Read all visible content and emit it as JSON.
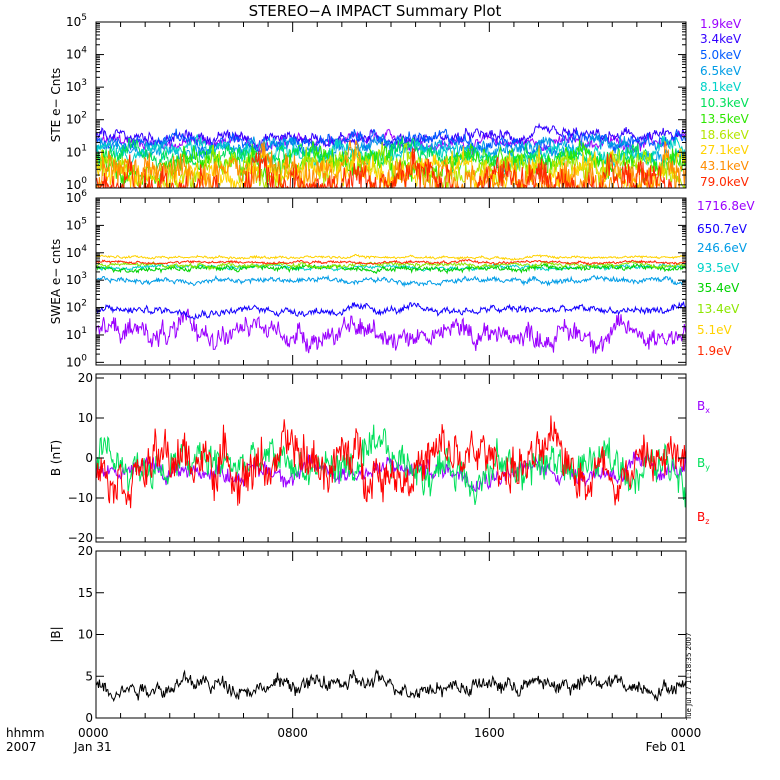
{
  "title": "STEREO−A IMPACT Summary Plot",
  "timestamp": "Tue Jul 17 11:18:35 2007",
  "x_axis": {
    "row_label_1": "hhmm",
    "row_label_2": "2007",
    "tick_labels": [
      {
        "time": "0000",
        "date": "Jan 31",
        "hour": 0
      },
      {
        "time": "0800",
        "date": "",
        "hour": 8
      },
      {
        "time": "1600",
        "date": "",
        "hour": 16
      },
      {
        "time": "0000",
        "date": "Feb 01",
        "hour": 24
      }
    ],
    "range_hours": [
      0,
      24
    ]
  },
  "chart_data": [
    {
      "type": "line",
      "id": "ste",
      "ylabel": "STE e− Cnts",
      "yscale": "log",
      "ylim": [
        0.8,
        100000
      ],
      "yticks": [
        1,
        10,
        100,
        1000,
        10000,
        100000
      ],
      "ytick_labels": [
        "10^0",
        "10^1",
        "10^2",
        "10^3",
        "10^4",
        "10^5"
      ],
      "series": [
        {
          "name": "1.9keV",
          "color": "#9b00ff",
          "baseline": 20,
          "noise": 0.15
        },
        {
          "name": "3.4keV",
          "color": "#3300ff",
          "baseline": 28,
          "noise": 0.15
        },
        {
          "name": "5.0keV",
          "color": "#005aff",
          "baseline": 22,
          "noise": 0.18
        },
        {
          "name": "6.5keV",
          "color": "#009ce6",
          "baseline": 14,
          "noise": 0.2
        },
        {
          "name": "8.1keV",
          "color": "#00d2c8",
          "baseline": 10,
          "noise": 0.22
        },
        {
          "name": "10.3keV",
          "color": "#00e05a",
          "baseline": 7,
          "noise": 0.25
        },
        {
          "name": "13.5keV",
          "color": "#2ee600",
          "baseline": 5,
          "noise": 0.3
        },
        {
          "name": "18.6keV",
          "color": "#b4e600",
          "baseline": 3.5,
          "noise": 0.35
        },
        {
          "name": "27.1keV",
          "color": "#ffd200",
          "baseline": 2.5,
          "noise": 0.4
        },
        {
          "name": "43.1keV",
          "color": "#ff8c00",
          "baseline": 1.8,
          "noise": 0.45
        },
        {
          "name": "79.0keV",
          "color": "#ff2800",
          "baseline": 1.3,
          "noise": 0.5
        }
      ]
    },
    {
      "type": "line",
      "id": "swea",
      "ylabel": "SWEA e− cnts",
      "yscale": "log",
      "ylim": [
        0.8,
        1000000
      ],
      "yticks": [
        1,
        10,
        100,
        1000,
        10000,
        100000,
        1000000
      ],
      "ytick_labels": [
        "10^0",
        "10^1",
        "10^2",
        "10^3",
        "10^4",
        "10^5",
        "10^6"
      ],
      "series": [
        {
          "name": "1716.8eV",
          "color": "#9b00ff",
          "baseline": 12,
          "noise": 0.35
        },
        {
          "name": "650.7eV",
          "color": "#1400ff",
          "baseline": 80,
          "noise": 0.12
        },
        {
          "name": "246.6eV",
          "color": "#009ce6",
          "baseline": 1000,
          "noise": 0.08
        },
        {
          "name": "93.5eV",
          "color": "#00d2c8",
          "baseline": 3000,
          "noise": 0.06
        },
        {
          "name": "35.4eV",
          "color": "#00d200",
          "baseline": 2800,
          "noise": 0.08
        },
        {
          "name": "13.4eV",
          "color": "#8ce600",
          "baseline": 3500,
          "noise": 0.06
        },
        {
          "name": "5.1eV",
          "color": "#ffd200",
          "baseline": 7000,
          "noise": 0.04
        },
        {
          "name": "1.9eV",
          "color": "#ff2800",
          "baseline": 4500,
          "noise": 0.04
        }
      ]
    },
    {
      "type": "line",
      "id": "bfield",
      "ylabel": "B (nT)",
      "yscale": "linear",
      "ylim": [
        -21,
        21
      ],
      "yticks": [
        -20,
        -10,
        0,
        10,
        20
      ],
      "ytick_labels": [
        "−20",
        "−10",
        "0",
        "10",
        "20"
      ],
      "series": [
        {
          "name": "Bx",
          "label_main": "B",
          "label_sub": "x",
          "color": "#9b00ff",
          "baseline": -3,
          "noise": 1.0
        },
        {
          "name": "By",
          "label_main": "B",
          "label_sub": "y",
          "color": "#00e05a",
          "baseline": -2,
          "noise": 2.0
        },
        {
          "name": "Bz",
          "label_main": "B",
          "label_sub": "z",
          "color": "#ff0000",
          "baseline": -1,
          "noise": 2.5
        }
      ]
    },
    {
      "type": "line",
      "id": "bmag",
      "ylabel": "|B|",
      "yscale": "linear",
      "ylim": [
        0,
        20
      ],
      "yticks": [
        0,
        5,
        10,
        15,
        20
      ],
      "ytick_labels": [
        "0",
        "5",
        "10",
        "15",
        "20"
      ],
      "series": [
        {
          "name": "|B|",
          "color": "#000000",
          "baseline": 4,
          "noise": 0.4
        }
      ]
    }
  ]
}
